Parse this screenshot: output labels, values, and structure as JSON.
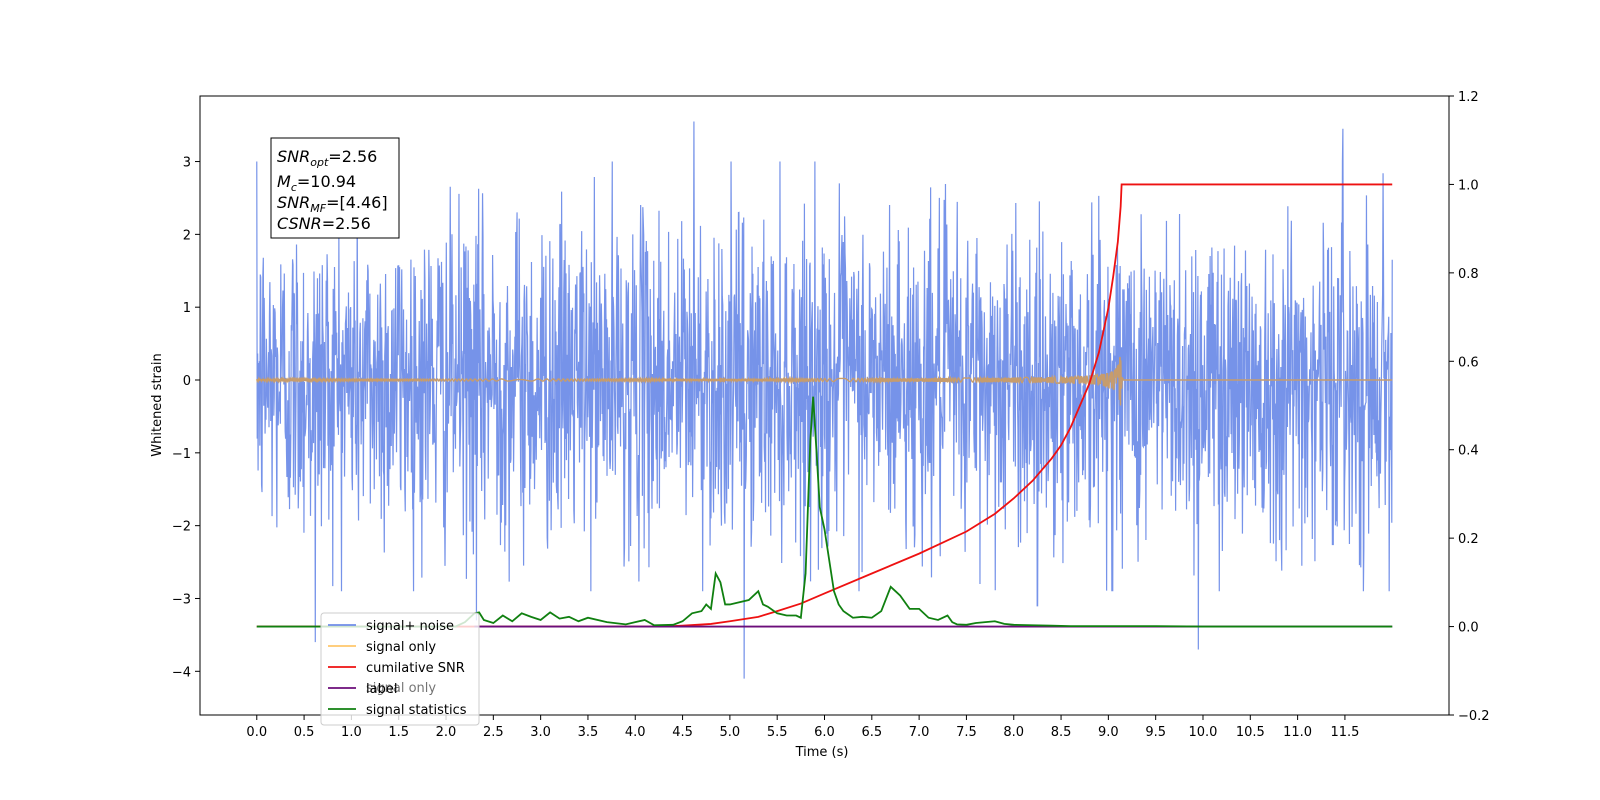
{
  "chart_data": {
    "type": "line",
    "title": "",
    "xlabel": "Time (s)",
    "ylabel": "Whitened strain",
    "xlim": [
      -0.6,
      12.6
    ],
    "ylim": [
      -4.6,
      3.9
    ],
    "y2lim": [
      -0.2,
      1.2
    ],
    "grid": false,
    "legend_position": "lower-left",
    "x_tick_labels": [
      "0.0",
      "0.5",
      "1.0",
      "1.5",
      "2.0",
      "2.5",
      "3.0",
      "3.5",
      "4.0",
      "4.5",
      "5.0",
      "5.5",
      "6.0",
      "6.5",
      "7.0",
      "7.5",
      "8.0",
      "8.5",
      "9.0",
      "9.5",
      "10.0",
      "10.5",
      "11.0",
      "11.5"
    ],
    "y_tick_labels": [
      "3",
      "2",
      "1",
      "0",
      "−1",
      "−2",
      "−3",
      "−4"
    ],
    "y2_tick_labels": [
      "1.2",
      "1.0",
      "0.8",
      "0.6",
      "0.4",
      "0.2",
      "0.0",
      "−0.2"
    ],
    "x_ticks": [
      0,
      0.5,
      1,
      1.5,
      2,
      2.5,
      3,
      3.5,
      4,
      4.5,
      5,
      5.5,
      6,
      6.5,
      7,
      7.5,
      8,
      8.5,
      9,
      9.5,
      10,
      10.5,
      11,
      11.5
    ],
    "y_ticks": [
      3,
      2,
      1,
      0,
      -1,
      -2,
      -3,
      -4
    ],
    "y2_ticks": [
      1.2,
      1.0,
      0.8,
      0.6,
      0.4,
      0.2,
      0.0,
      -0.2
    ],
    "annotation": {
      "snr_opt": "=2.56",
      "mc": "=10.94",
      "snr_mf": "=[4.46]",
      "csnr": "=2.56"
    },
    "legend": [
      "signal+ noise",
      "signal only",
      "cumilative SNR",
      "label",
      "signal statistics"
    ],
    "legend_hidden_text": "signal only",
    "series": [
      {
        "name": "signal+ noise",
        "color": "#6f8de8",
        "axis": "left",
        "kind": "noise",
        "x_range": [
          0,
          12
        ],
        "sigma": 1.1,
        "spikes": [
          {
            "x": 0.62,
            "y": -3.6
          },
          {
            "x": 4.62,
            "y": 3.55
          },
          {
            "x": 5.15,
            "y": -4.1
          },
          {
            "x": 9.95,
            "y": -3.7
          },
          {
            "x": 11.48,
            "y": 3.45
          },
          {
            "x": 2.32,
            "y": -3.3
          },
          {
            "x": 8.25,
            "y": -3.1
          }
        ]
      },
      {
        "name": "signal only",
        "color": "#c69c6d",
        "axis": "left",
        "kind": "chirp",
        "x_range": [
          0,
          12
        ],
        "merger_time": 9.13,
        "peak_amplitude": 0.42
      },
      {
        "name": "cumilative SNR",
        "color": "#ee1111",
        "axis": "right",
        "x": [
          0,
          4.3,
          4.5,
          4.8,
          5.0,
          5.3,
          5.5,
          5.75,
          6.0,
          6.5,
          7.0,
          7.5,
          7.8,
          8.0,
          8.2,
          8.4,
          8.5,
          8.6,
          8.7,
          8.8,
          8.9,
          9.0,
          9.05,
          9.1,
          9.13,
          9.14,
          12.0
        ],
        "values": [
          0,
          0,
          0.002,
          0.006,
          0.012,
          0.022,
          0.035,
          0.052,
          0.075,
          0.12,
          0.165,
          0.215,
          0.255,
          0.29,
          0.33,
          0.38,
          0.41,
          0.45,
          0.5,
          0.55,
          0.62,
          0.72,
          0.79,
          0.87,
          0.95,
          1.0,
          1.0
        ]
      },
      {
        "name": "label",
        "color": "#6b0d7a",
        "axis": "right",
        "x": [
          2.3,
          12.0
        ],
        "values": [
          0,
          0
        ]
      },
      {
        "name": "signal statistics",
        "color": "#108010",
        "axis": "right",
        "x": [
          0,
          2.1,
          2.2,
          2.3,
          2.35,
          2.4,
          2.5,
          2.6,
          2.7,
          2.8,
          2.9,
          3.0,
          3.1,
          3.2,
          3.3,
          3.4,
          3.5,
          3.7,
          3.9,
          4.0,
          4.1,
          4.2,
          4.4,
          4.5,
          4.6,
          4.7,
          4.75,
          4.8,
          4.85,
          4.9,
          4.95,
          5.0,
          5.1,
          5.2,
          5.3,
          5.35,
          5.4,
          5.5,
          5.6,
          5.7,
          5.75,
          5.8,
          5.85,
          5.88,
          5.92,
          5.95,
          6.0,
          6.05,
          6.1,
          6.15,
          6.2,
          6.3,
          6.4,
          6.5,
          6.6,
          6.7,
          6.75,
          6.8,
          6.9,
          7.0,
          7.1,
          7.2,
          7.3,
          7.35,
          7.4,
          7.5,
          7.6,
          7.7,
          7.8,
          7.9,
          8.0,
          8.2,
          8.4,
          8.6,
          9.0,
          9.5,
          10.0,
          12.0
        ],
        "values": [
          0,
          0,
          0.01,
          0.03,
          0.032,
          0.015,
          0.008,
          0.025,
          0.012,
          0.03,
          0.022,
          0.015,
          0.032,
          0.018,
          0.022,
          0.012,
          0.02,
          0.01,
          0.005,
          0.01,
          0.015,
          0.003,
          0.004,
          0.012,
          0.03,
          0.035,
          0.05,
          0.04,
          0.12,
          0.1,
          0.05,
          0.05,
          0.055,
          0.06,
          0.08,
          0.05,
          0.045,
          0.03,
          0.025,
          0.025,
          0.02,
          0.12,
          0.42,
          0.52,
          0.38,
          0.27,
          0.22,
          0.15,
          0.08,
          0.05,
          0.035,
          0.02,
          0.022,
          0.02,
          0.035,
          0.09,
          0.08,
          0.07,
          0.04,
          0.04,
          0.02,
          0.015,
          0.025,
          0.01,
          0.005,
          0.004,
          0.008,
          0.01,
          0.012,
          0.006,
          0.004,
          0.003,
          0.002,
          0.001,
          0.001,
          0.001,
          0.0,
          0.0
        ]
      }
    ]
  }
}
